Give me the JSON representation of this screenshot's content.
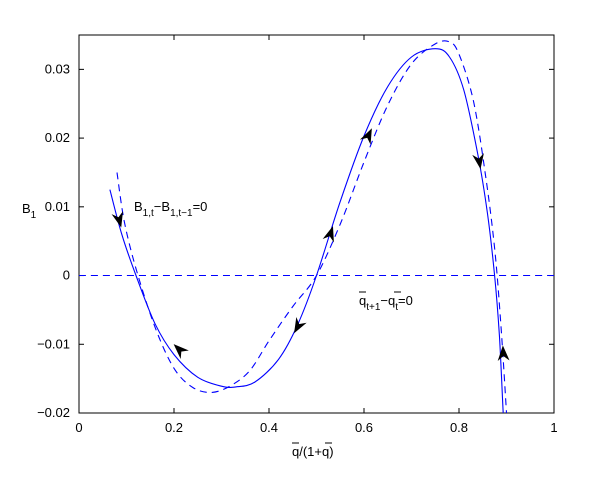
{
  "chart_data": {
    "type": "line",
    "xlabel": "q/(1+q)",
    "ylabel": "B1",
    "xlim": [
      0,
      1
    ],
    "ylim": [
      -0.02,
      0.035
    ],
    "grid": false,
    "x_ticks": [
      0,
      0.2,
      0.4,
      0.6,
      0.8,
      1
    ],
    "y_ticks": [
      -0.02,
      -0.01,
      0,
      0.01,
      0.02,
      0.03
    ],
    "x_tick_labels": [
      "0",
      "0.2",
      "0.4",
      "0.6",
      "0.8",
      "1"
    ],
    "y_tick_labels": [
      "−0.02",
      "−0.01",
      "0",
      "0.01",
      "0.02",
      "0.03"
    ],
    "series": [
      {
        "style": "solid",
        "color": "#0000ff",
        "x": [
          0.065,
          0.09,
          0.12,
          0.16,
          0.2,
          0.25,
          0.3,
          0.33,
          0.37,
          0.42,
          0.46,
          0.5,
          0.55,
          0.6,
          0.65,
          0.7,
          0.75,
          0.78,
          0.81,
          0.84,
          0.86,
          0.875,
          0.885,
          0.893
        ],
        "y": [
          0.0125,
          0.006,
          0.0,
          -0.007,
          -0.0115,
          -0.0148,
          -0.0161,
          -0.0162,
          -0.0155,
          -0.0122,
          -0.0072,
          0.0,
          0.0108,
          0.0203,
          0.0275,
          0.0318,
          0.033,
          0.0318,
          0.027,
          0.0175,
          0.009,
          0.0,
          -0.0087,
          -0.02
        ]
      },
      {
        "style": "dashed",
        "color": "#0000ff",
        "x": [
          0.08,
          0.095,
          0.12,
          0.16,
          0.2,
          0.24,
          0.28,
          0.32,
          0.36,
          0.4,
          0.45,
          0.5,
          0.55,
          0.6,
          0.65,
          0.7,
          0.75,
          0.78,
          0.8,
          0.83,
          0.855,
          0.875,
          0.888,
          0.9
        ],
        "y": [
          0.015,
          0.008,
          0.001,
          -0.0075,
          -0.0135,
          -0.0163,
          -0.017,
          -0.016,
          -0.0138,
          -0.0095,
          -0.0045,
          0.0,
          0.0075,
          0.0165,
          0.0248,
          0.0308,
          0.0337,
          0.034,
          0.0322,
          0.0255,
          0.015,
          0.004,
          -0.007,
          -0.02
        ]
      },
      {
        "style": "dashed",
        "color": "#0000ff",
        "x": [
          0,
          1
        ],
        "y": [
          0,
          0
        ]
      }
    ],
    "arrows": [
      {
        "x": 0.085,
        "y": 0.008,
        "dir": "down"
      },
      {
        "x": 0.21,
        "y": -0.0107,
        "dir": "up"
      },
      {
        "x": 0.46,
        "y": -0.0075,
        "dir": "down"
      },
      {
        "x": 0.53,
        "y": 0.0062,
        "dir": "up"
      },
      {
        "x": 0.61,
        "y": 0.0205,
        "dir": "up"
      },
      {
        "x": 0.843,
        "y": 0.0165,
        "dir": "down"
      },
      {
        "x": 0.893,
        "y": -0.0112,
        "dir": "up"
      }
    ],
    "annotations": [
      {
        "base": "B",
        "sub1": "1,t",
        "mid": "−B",
        "sub2": "1,t−1",
        "tail": "=0",
        "x": 0.12,
        "y": 0.0096
      },
      {
        "base": "q",
        "sub1": "t+1",
        "mid": "−q",
        "sub2": "t",
        "tail": "=0",
        "x": 0.585,
        "y": -0.0038
      }
    ]
  }
}
